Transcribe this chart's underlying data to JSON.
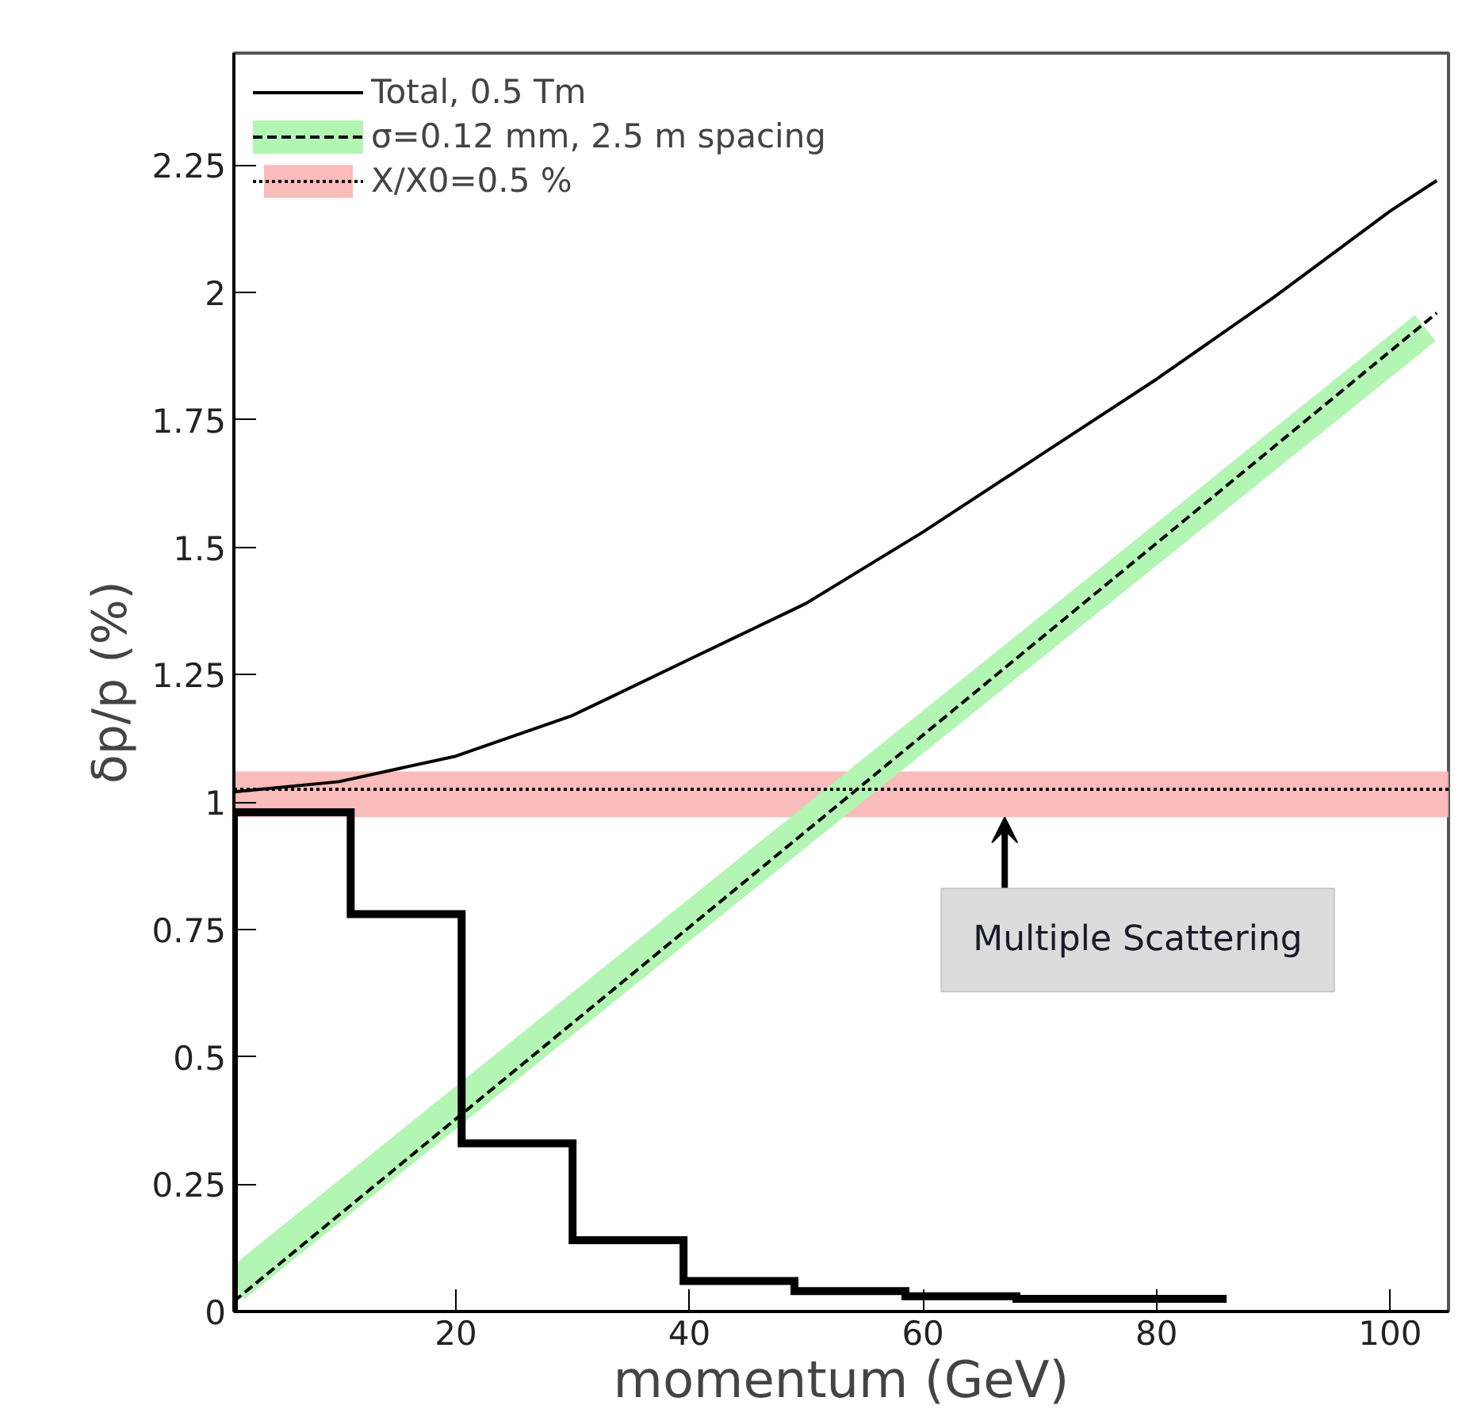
{
  "chart_data": {
    "type": "line",
    "xlabel": "momentum (GeV)",
    "ylabel": "δp/p (%)",
    "xlim": [
      1,
      105
    ],
    "ylim": [
      0,
      2.47
    ],
    "xticks": [
      20,
      40,
      60,
      80,
      100
    ],
    "yticks": [
      0,
      0.25,
      0.5,
      0.75,
      1,
      1.25,
      1.5,
      1.75,
      2,
      2.25
    ],
    "grid": false,
    "legend": "top left",
    "series": [
      {
        "name": "Total, 0.5 Tm",
        "color": "#000000",
        "line_style": "solid",
        "x": [
          1,
          10,
          20,
          30,
          40,
          50,
          60,
          70,
          80,
          90,
          100,
          104
        ],
        "values": [
          1.02,
          1.04,
          1.09,
          1.17,
          1.28,
          1.39,
          1.53,
          1.68,
          1.83,
          1.99,
          2.16,
          2.22
        ]
      },
      {
        "name": "σ=0.12 mm, 2.5 m spacing",
        "color": "#b3f5b3",
        "line_style": "solid",
        "x": [
          1,
          103
        ],
        "values": [
          0.05,
          1.93
        ]
      },
      {
        "color": "#000000",
        "line_style": "dashed",
        "x": [
          1,
          104
        ],
        "values": [
          0.02,
          1.96
        ]
      },
      {
        "type": "histogram",
        "color": "#000000",
        "bins": [
          1,
          11,
          20.5,
          30,
          39.5,
          49,
          58.5,
          68,
          77,
          86
        ],
        "values": [
          0.98,
          0.78,
          0.33,
          0.14,
          0.06,
          0.04,
          0.03,
          0.025,
          0.025
        ]
      }
    ],
    "bands": [
      {
        "axis": "y",
        "from": 0.97,
        "to": 1.06,
        "label": "X/X0=0.5 %",
        "color": "#f9b4b4"
      }
    ],
    "ref_lines": [
      {
        "axis": "y",
        "value": 1.025,
        "color": "#000000",
        "line_style": "dotted"
      }
    ],
    "annotations": [
      {
        "text": "Multiple Scattering",
        "x": 67,
        "y": 0.97
      }
    ]
  }
}
